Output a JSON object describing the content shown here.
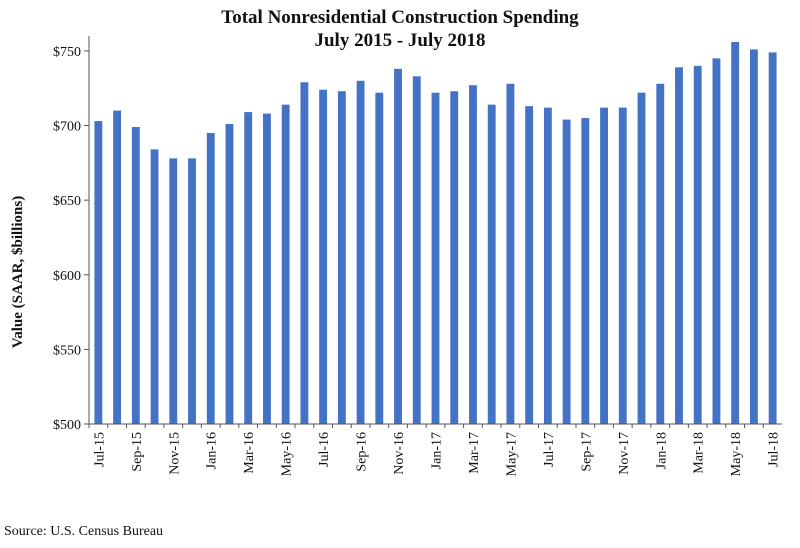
{
  "chart_data": {
    "type": "bar",
    "title_lines": [
      "Total Nonresidential Construction Spending",
      "July 2015 - July 2018"
    ],
    "ylabel": "Value (SAAR, $billions)",
    "xlabel": "",
    "ylim": [
      500,
      760
    ],
    "yticks": [
      500,
      550,
      600,
      650,
      700,
      750
    ],
    "ytick_labels": [
      "$500",
      "$550",
      "$600",
      "$650",
      "$700",
      "$750"
    ],
    "categories": [
      "Jul-15",
      "Aug-15",
      "Sep-15",
      "Oct-15",
      "Nov-15",
      "Dec-15",
      "Jan-16",
      "Feb-16",
      "Mar-16",
      "Apr-16",
      "May-16",
      "Jun-16",
      "Jul-16",
      "Aug-16",
      "Sep-16",
      "Oct-16",
      "Nov-16",
      "Dec-16",
      "Jan-17",
      "Feb-17",
      "Mar-17",
      "Apr-17",
      "May-17",
      "Jun-17",
      "Jul-17",
      "Aug-17",
      "Sep-17",
      "Oct-17",
      "Nov-17",
      "Dec-17",
      "Jan-18",
      "Feb-18",
      "Mar-18",
      "Apr-18",
      "May-18",
      "Jun-18",
      "Jul-18"
    ],
    "xtick_labels": [
      "Jul-15",
      "",
      "Sep-15",
      "",
      "Nov-15",
      "",
      "Jan-16",
      "",
      "Mar-16",
      "",
      "May-16",
      "",
      "Jul-16",
      "",
      "Sep-16",
      "",
      "Nov-16",
      "",
      "Jan-17",
      "",
      "Mar-17",
      "",
      "May-17",
      "",
      "Jul-17",
      "",
      "Sep-17",
      "",
      "Nov-17",
      "",
      "Jan-18",
      "",
      "Mar-18",
      "",
      "May-18",
      "",
      "Jul-18"
    ],
    "values": [
      703,
      710,
      699,
      684,
      678,
      678,
      695,
      701,
      709,
      708,
      714,
      729,
      724,
      723,
      730,
      722,
      738,
      733,
      722,
      723,
      727,
      714,
      728,
      713,
      712,
      704,
      705,
      712,
      712,
      722,
      728,
      739,
      740,
      745,
      756,
      751,
      749
    ],
    "bar_color": "#4472c4",
    "grid": false,
    "legend": "none"
  },
  "source_note": "Source:  U.S. Census Bureau"
}
